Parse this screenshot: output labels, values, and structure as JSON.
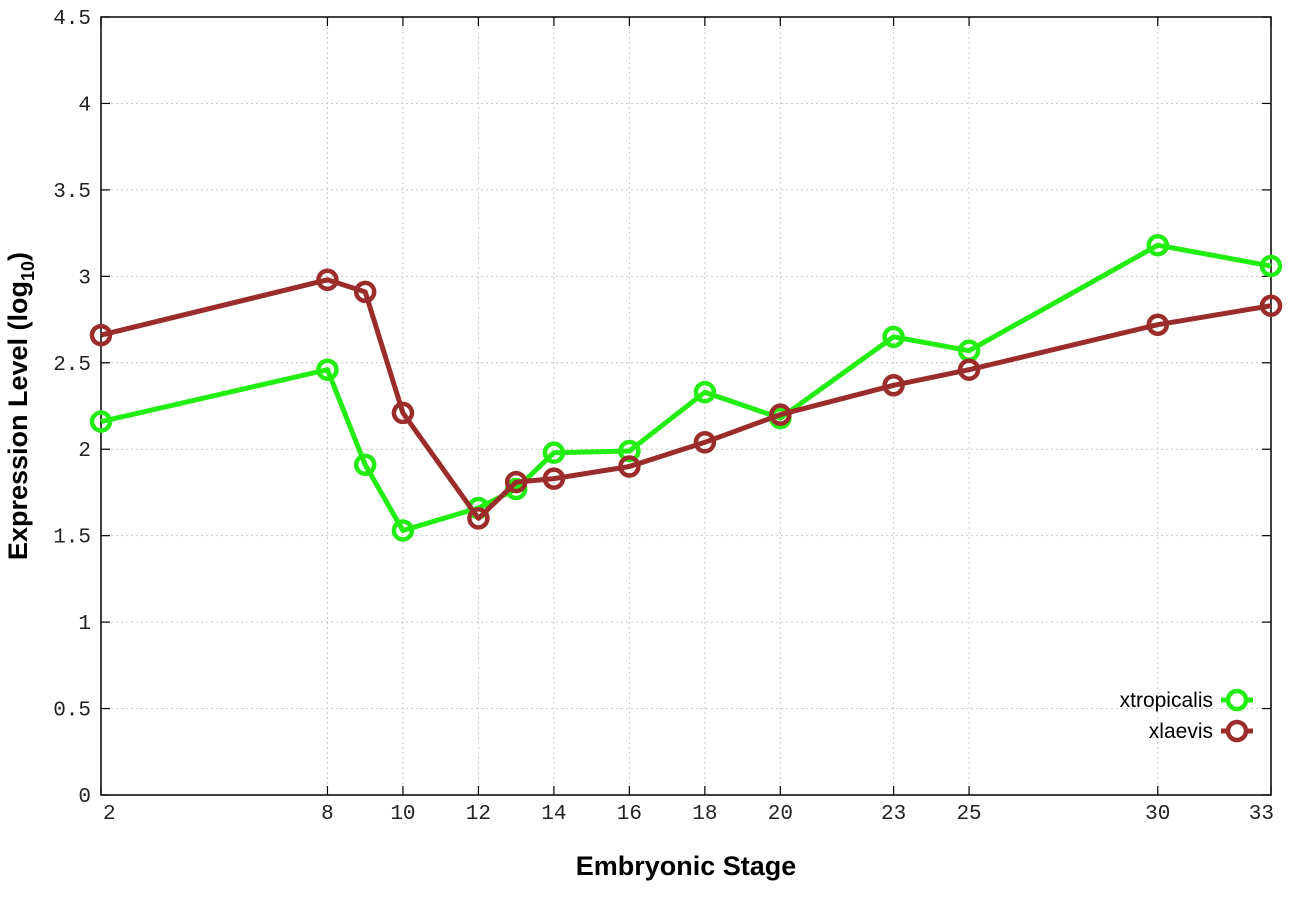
{
  "chart_data": {
    "type": "line",
    "xlabel": "Embryonic Stage",
    "ylabel_main": "Expression Level (log",
    "ylabel_sub": "10",
    "ylabel_close": ")",
    "x": [
      2,
      8,
      9,
      10,
      12,
      13,
      14,
      16,
      18,
      20,
      23,
      25,
      30,
      33
    ],
    "x_ticks": [
      2,
      8,
      10,
      12,
      14,
      16,
      18,
      20,
      23,
      25,
      30,
      33
    ],
    "x_range": [
      2,
      33
    ],
    "y_ticks": [
      "0",
      "0.5",
      "1",
      "1.5",
      "2",
      "2.5",
      "3",
      "3.5",
      "4",
      "4.5"
    ],
    "ylim": [
      0,
      4.5
    ],
    "grid": true,
    "legend_position": "bottom-right",
    "series": [
      {
        "name": "xtropicalis",
        "color": "#22ee11",
        "values": [
          2.16,
          2.46,
          1.91,
          1.53,
          1.66,
          1.77,
          1.98,
          1.99,
          2.33,
          2.18,
          2.65,
          2.57,
          3.18,
          3.06
        ]
      },
      {
        "name": "xlaevis",
        "color": "#9b2c2c",
        "values": [
          2.66,
          2.98,
          2.91,
          2.21,
          1.6,
          1.81,
          1.83,
          1.9,
          2.04,
          2.2,
          2.37,
          2.46,
          2.72,
          2.83
        ]
      }
    ]
  }
}
